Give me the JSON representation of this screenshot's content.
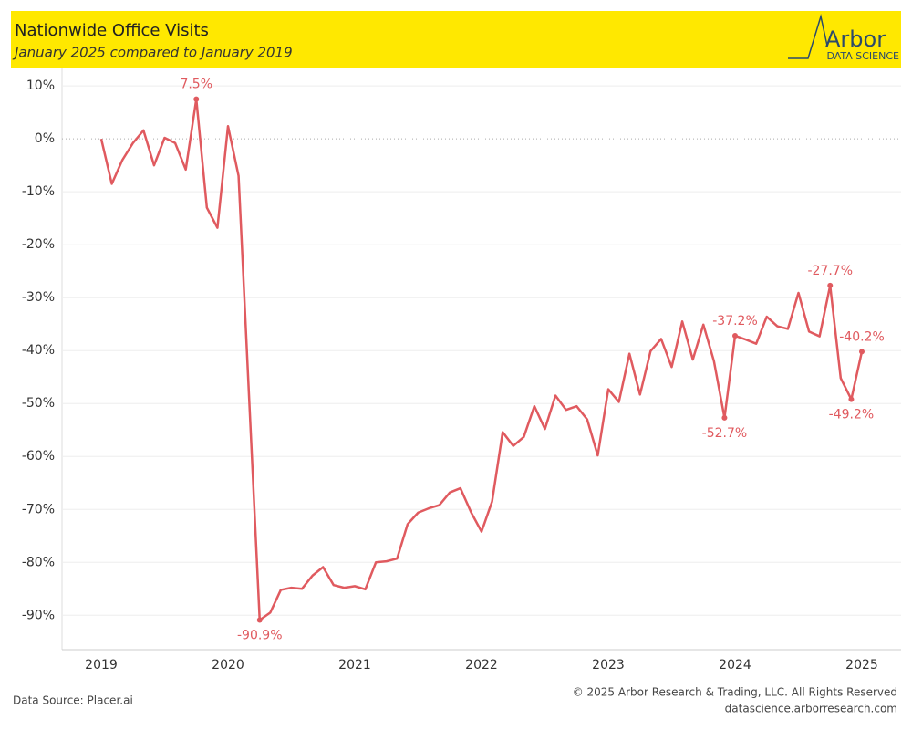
{
  "header": {
    "logo_name": "Arbor",
    "logo_tagline": "DATA SCIENCE"
  },
  "footer": {
    "source": "Data Source: Placer.ai",
    "copyright": "© 2025 Arbor Research & Trading, LLC. All Rights Reserved",
    "url": "datascience.arborresearch.com"
  },
  "chart_data": {
    "type": "line",
    "title": "Nationwide Office Visits",
    "subtitle": "January 2025 compared to January 2019",
    "categories": [
      "2019",
      null,
      null,
      null,
      null,
      null,
      null,
      null,
      null,
      null,
      null,
      null,
      "2020",
      null,
      null,
      null,
      null,
      null,
      null,
      null,
      null,
      null,
      null,
      null,
      "2021",
      null,
      null,
      null,
      null,
      null,
      null,
      null,
      null,
      null,
      null,
      null,
      "2022",
      null,
      null,
      null,
      null,
      null,
      null,
      null,
      null,
      null,
      null,
      null,
      "2023",
      null,
      null,
      null,
      null,
      null,
      null,
      null,
      null,
      null,
      null,
      null,
      "2024",
      null,
      null,
      null,
      null,
      null,
      null,
      null,
      null,
      null,
      null,
      null,
      "2025"
    ],
    "series": [
      {
        "color": "#e05a5f",
        "values": [
          0,
          -8.5,
          -4,
          -0.8,
          1.6,
          -5,
          0.2,
          -0.8,
          -5.8,
          7.5,
          -13,
          -16.8,
          2.4,
          -7,
          -49,
          -90.9,
          -89.5,
          -85.2,
          -84.8,
          -85,
          -82.5,
          -80.9,
          -84.3,
          -84.8,
          -84.5,
          -85.1,
          -80,
          -79.8,
          -79.3,
          -72.8,
          -70.6,
          -69.8,
          -69.2,
          -66.8,
          -66,
          -70.5,
          -74.2,
          -68.5,
          -55.4,
          -58,
          -56.3,
          -50.5,
          -54.8,
          -48.5,
          -51.2,
          -50.5,
          -53,
          -59.8,
          -47.3,
          -49.7,
          -40.6,
          -48.3,
          -40.1,
          -37.8,
          -43.1,
          -34.5,
          -41.7,
          -35.1,
          -42,
          -52.7,
          -37.2,
          -37.9,
          -38.7,
          -33.6,
          -35.4,
          -35.9,
          -29.1,
          -36.4,
          -37.3,
          -27.7,
          -45.2,
          -49.2,
          -40.2
        ],
        "value_labels": [
          null,
          null,
          null,
          null,
          null,
          null,
          null,
          null,
          null,
          "7.5%",
          null,
          null,
          null,
          null,
          null,
          "-90.9%",
          null,
          null,
          null,
          null,
          null,
          null,
          null,
          null,
          null,
          null,
          null,
          null,
          null,
          null,
          null,
          null,
          null,
          null,
          null,
          null,
          null,
          null,
          null,
          null,
          null,
          null,
          null,
          null,
          null,
          null,
          null,
          null,
          null,
          null,
          null,
          null,
          null,
          null,
          null,
          null,
          null,
          null,
          null,
          "-52.7%",
          "-37.2%",
          null,
          null,
          null,
          null,
          null,
          null,
          null,
          null,
          "-27.7%",
          null,
          "-49.2%",
          "-40.2%"
        ]
      }
    ],
    "ylim": [
      -96.5,
      13.3
    ],
    "yticks": [
      {
        "value": 10,
        "label": "10%"
      },
      {
        "value": 0,
        "label": "0%"
      },
      {
        "value": -10,
        "label": "-10%"
      },
      {
        "value": -20,
        "label": "-20%"
      },
      {
        "value": -30,
        "label": "-30%"
      },
      {
        "value": -40,
        "label": "-40%"
      },
      {
        "value": -50,
        "label": "-50%"
      },
      {
        "value": -60,
        "label": "-60%"
      },
      {
        "value": -70,
        "label": "-70%"
      },
      {
        "value": -80,
        "label": "-80%"
      },
      {
        "value": -90,
        "label": "-90%"
      }
    ],
    "grid": true
  }
}
